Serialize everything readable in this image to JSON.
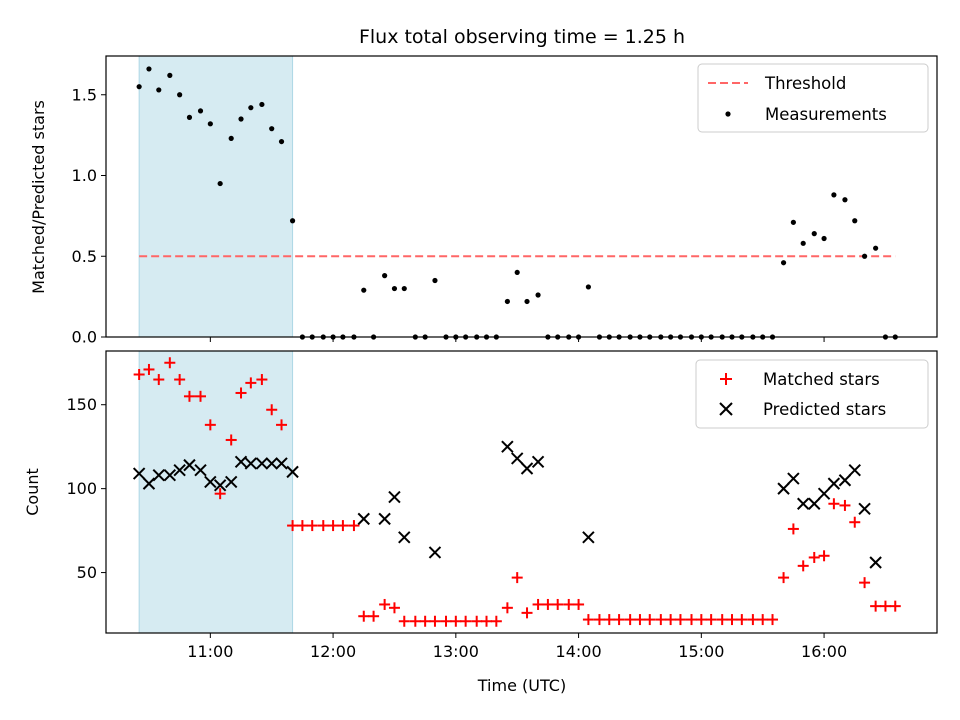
{
  "chart_data": [
    {
      "type": "scatter",
      "title": "Flux total observing time = 1.25 h",
      "ylabel": "Matched/Predicted stars",
      "xlabel": "",
      "x_unit": "hours UTC",
      "xlim": [
        10.15,
        16.92
      ],
      "ylim": [
        0,
        1.74
      ],
      "yticks": [
        0.0,
        0.5,
        1.0,
        1.5
      ],
      "ytick_labels": [
        "0.0",
        "0.5",
        "1.0",
        "1.5"
      ],
      "xticks": [
        11,
        12,
        13,
        14,
        15,
        16
      ],
      "xtick_labels": [
        "",
        "",
        "",
        "",
        "",
        ""
      ],
      "shaded_interval": [
        10.42,
        11.67
      ],
      "shaded_color": "#add8e6",
      "threshold": {
        "name": "Threshold",
        "value": 0.5,
        "x_range": [
          10.42,
          16.58
        ],
        "color": "#ff6666"
      },
      "series": [
        {
          "name": "Measurements",
          "color": "#000000",
          "x": [
            10.42,
            10.5,
            10.58,
            10.67,
            10.75,
            10.83,
            10.92,
            11.0,
            11.08,
            11.17,
            11.25,
            11.33,
            11.42,
            11.5,
            11.58,
            11.67,
            11.75,
            11.83,
            11.92,
            12.0,
            12.08,
            12.17,
            12.25,
            12.33,
            12.42,
            12.5,
            12.58,
            12.67,
            12.75,
            12.83,
            12.92,
            13.0,
            13.08,
            13.17,
            13.25,
            13.33,
            13.42,
            13.5,
            13.58,
            13.67,
            13.75,
            13.83,
            13.92,
            14.0,
            14.08,
            14.17,
            14.25,
            14.33,
            14.42,
            14.5,
            14.58,
            14.67,
            14.75,
            14.83,
            14.92,
            15.0,
            15.08,
            15.17,
            15.25,
            15.33,
            15.42,
            15.5,
            15.58,
            15.67,
            15.75,
            15.83,
            15.92,
            16.0,
            16.08,
            16.17,
            16.25,
            16.33,
            16.42,
            16.5,
            16.58
          ],
          "y": [
            1.55,
            1.66,
            1.53,
            1.62,
            1.5,
            1.36,
            1.4,
            1.32,
            0.95,
            1.23,
            1.35,
            1.42,
            1.44,
            1.29,
            1.21,
            0.72,
            0,
            0,
            0,
            0,
            0,
            0,
            0.29,
            0,
            0.38,
            0.3,
            0.3,
            0,
            0,
            0.35,
            0,
            0,
            0,
            0,
            0,
            0,
            0.22,
            0.4,
            0.22,
            0.26,
            0,
            0,
            0,
            0,
            0.31,
            0,
            0,
            0,
            0,
            0,
            0,
            0,
            0,
            0,
            0,
            0,
            0,
            0,
            0,
            0,
            0,
            0,
            0,
            0.46,
            0.71,
            0.58,
            0.64,
            0.61,
            0.88,
            0.85,
            0.72,
            0.5,
            0.55,
            0,
            0
          ]
        }
      ],
      "legend_position": "upper-right"
    },
    {
      "type": "scatter",
      "title": "",
      "ylabel": "Count",
      "xlabel": "Time (UTC)",
      "x_unit": "hours UTC",
      "xlim": [
        10.15,
        16.92
      ],
      "ylim": [
        14,
        182
      ],
      "yticks": [
        50,
        100,
        150
      ],
      "ytick_labels": [
        "50",
        "100",
        "150"
      ],
      "xticks": [
        11,
        12,
        13,
        14,
        15,
        16
      ],
      "xtick_labels": [
        "11:00",
        "12:00",
        "13:00",
        "14:00",
        "15:00",
        "16:00"
      ],
      "shaded_interval": [
        10.42,
        11.67
      ],
      "shaded_color": "#add8e6",
      "series": [
        {
          "name": "Matched stars",
          "marker": "plus",
          "color": "#ff0000",
          "x": [
            10.42,
            10.5,
            10.58,
            10.67,
            10.75,
            10.83,
            10.92,
            11.0,
            11.08,
            11.17,
            11.25,
            11.33,
            11.42,
            11.5,
            11.58,
            11.67,
            11.75,
            11.83,
            11.92,
            12.0,
            12.08,
            12.17,
            12.25,
            12.33,
            12.42,
            12.5,
            12.58,
            12.67,
            12.75,
            12.83,
            12.92,
            13.0,
            13.08,
            13.17,
            13.25,
            13.33,
            13.42,
            13.5,
            13.58,
            13.67,
            13.75,
            13.83,
            13.92,
            14.0,
            14.08,
            14.17,
            14.25,
            14.33,
            14.42,
            14.5,
            14.58,
            14.67,
            14.75,
            14.83,
            14.92,
            15.0,
            15.08,
            15.17,
            15.25,
            15.33,
            15.42,
            15.5,
            15.58,
            15.67,
            15.75,
            15.83,
            15.92,
            16.0,
            16.08,
            16.17,
            16.25,
            16.33,
            16.42,
            16.5,
            16.58
          ],
          "y": [
            168,
            171,
            165,
            175,
            165,
            155,
            155,
            138,
            97,
            129,
            157,
            163,
            165,
            147,
            138,
            78,
            78,
            78,
            78,
            78,
            78,
            78,
            24,
            24,
            31,
            29,
            21,
            21,
            21,
            21,
            21,
            21,
            21,
            21,
            21,
            21,
            29,
            47,
            26,
            31,
            31,
            31,
            31,
            31,
            22,
            22,
            22,
            22,
            22,
            22,
            22,
            22,
            22,
            22,
            22,
            22,
            22,
            22,
            22,
            22,
            22,
            22,
            22,
            47,
            76,
            54,
            59,
            60,
            91,
            90,
            80,
            44,
            30,
            30,
            30
          ]
        },
        {
          "name": "Predicted stars",
          "marker": "x",
          "color": "#000000",
          "x": [
            10.42,
            10.5,
            10.58,
            10.67,
            10.75,
            10.83,
            10.92,
            11.0,
            11.08,
            11.17,
            11.25,
            11.33,
            11.42,
            11.5,
            11.58,
            11.67,
            12.25,
            12.42,
            12.5,
            12.58,
            12.83,
            13.42,
            13.5,
            13.58,
            13.67,
            14.08,
            15.67,
            15.75,
            15.83,
            15.92,
            16.0,
            16.08,
            16.17,
            16.25,
            16.33,
            16.42
          ],
          "y": [
            109,
            103,
            108,
            108,
            111,
            114,
            111,
            104,
            102,
            104,
            116,
            115,
            115,
            115,
            115,
            110,
            82,
            82,
            95,
            71,
            62,
            125,
            118,
            112,
            116,
            71,
            100,
            106,
            91,
            91,
            97,
            103,
            105,
            111,
            88,
            56
          ]
        }
      ],
      "legend_position": "upper-right"
    }
  ]
}
